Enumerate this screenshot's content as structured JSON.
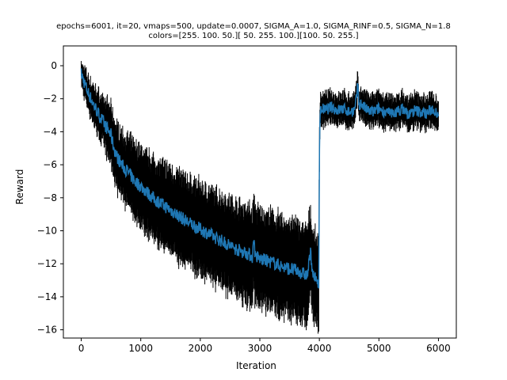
{
  "chart_data": {
    "type": "line",
    "title_line1": "epochs=6001, it=20, vmaps=500, update=0.0007, SIGMA_A=1.0, SIGMA_RINF=0.5, SIGMA_N=1.8",
    "title_line2": "colors=[255. 100.  50.][ 50. 255. 100.][100.  50. 255.]",
    "xlabel": "Iteration",
    "ylabel": "Reward",
    "xlim": [
      -300,
      6300
    ],
    "ylim": [
      -16.5,
      1.2
    ],
    "xticks": [
      0,
      1000,
      2000,
      3000,
      4000,
      5000,
      6000
    ],
    "xtick_labels": [
      "0",
      "1000",
      "2000",
      "3000",
      "4000",
      "5000",
      "6000"
    ],
    "yticks": [
      0,
      -2,
      -4,
      -6,
      -8,
      -10,
      -12,
      -14,
      -16
    ],
    "ytick_labels": [
      "0",
      "−2",
      "−4",
      "−6",
      "−8",
      "−10",
      "−12",
      "−14",
      "−16"
    ],
    "grid": false,
    "series": [
      {
        "color": "#1f77b4",
        "errorbar_color": "#000000",
        "x": [
          0,
          50,
          100,
          150,
          200,
          300,
          400,
          500,
          550,
          600,
          700,
          800,
          900,
          1000,
          1200,
          1400,
          1600,
          1800,
          2000,
          2200,
          2400,
          2600,
          2800,
          2880,
          2900,
          2920,
          3000,
          3200,
          3400,
          3600,
          3800,
          3850,
          3900,
          3950,
          3990,
          4000,
          4010,
          4050,
          4100,
          4200,
          4300,
          4400,
          4500,
          4600,
          4650,
          4660,
          4700,
          4800,
          4900,
          5000,
          5100,
          5200,
          5300,
          5400,
          5500,
          5600,
          5700,
          5800,
          5900,
          6000
        ],
        "y": [
          -0.5,
          -1.0,
          -1.5,
          -1.9,
          -2.3,
          -3.0,
          -3.6,
          -4.2,
          -5.0,
          -5.5,
          -6.1,
          -6.5,
          -7.0,
          -7.3,
          -8.0,
          -8.5,
          -9.0,
          -9.5,
          -9.9,
          -10.3,
          -10.7,
          -11.1,
          -11.4,
          -11.6,
          -10.2,
          -11.5,
          -11.7,
          -11.9,
          -12.2,
          -12.4,
          -12.7,
          -11.3,
          -12.8,
          -13.0,
          -13.1,
          -6.0,
          -2.8,
          -2.6,
          -2.7,
          -2.5,
          -2.7,
          -2.6,
          -2.8,
          -2.7,
          -1.0,
          -2.4,
          -2.3,
          -2.7,
          -2.8,
          -2.6,
          -2.8,
          -2.9,
          -2.8,
          -2.6,
          -3.0,
          -2.7,
          -2.8,
          -2.9,
          -2.6,
          -2.9
        ],
        "err": [
          0.6,
          0.8,
          0.9,
          1.0,
          1.1,
          1.3,
          1.5,
          1.7,
          1.8,
          1.9,
          2.0,
          2.1,
          2.2,
          2.3,
          2.4,
          2.5,
          2.6,
          2.6,
          2.7,
          2.7,
          2.8,
          2.8,
          2.9,
          2.9,
          2.7,
          2.9,
          2.9,
          2.9,
          2.9,
          2.9,
          2.9,
          2.6,
          2.7,
          2.7,
          2.6,
          1.6,
          1.0,
          0.9,
          0.9,
          0.8,
          0.9,
          0.9,
          0.9,
          0.9,
          0.7,
          0.8,
          0.8,
          0.9,
          0.9,
          0.9,
          0.9,
          0.9,
          0.9,
          0.9,
          0.9,
          0.9,
          0.9,
          0.9,
          0.9,
          0.9
        ]
      }
    ]
  }
}
